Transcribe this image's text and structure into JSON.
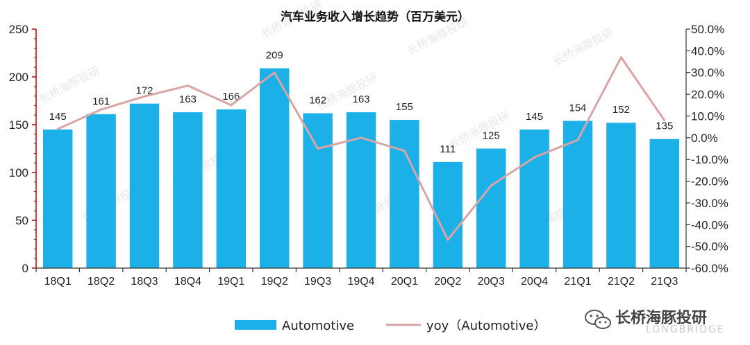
{
  "chart_data": {
    "type": "bar",
    "title": "汽车业务收入增长趋势（百万美元）",
    "categories": [
      "18Q1",
      "18Q2",
      "18Q3",
      "18Q4",
      "19Q1",
      "19Q2",
      "19Q3",
      "19Q4",
      "20Q1",
      "20Q2",
      "20Q3",
      "20Q4",
      "21Q1",
      "21Q2",
      "21Q3"
    ],
    "series": [
      {
        "name": "Automotive",
        "type": "bar",
        "axis": "left",
        "color": "#1cb0e8",
        "values": [
          145,
          161,
          172,
          163,
          166,
          209,
          162,
          163,
          155,
          111,
          125,
          145,
          154,
          152,
          135
        ]
      },
      {
        "name": "yoy（Automotive）",
        "type": "line",
        "axis": "right",
        "color": "#d9a4a4",
        "values": [
          0.04,
          0.13,
          0.19,
          0.24,
          0.15,
          0.3,
          -0.05,
          0.0,
          -0.06,
          -0.47,
          -0.22,
          -0.09,
          -0.01,
          0.37,
          0.08
        ]
      }
    ],
    "y_left": {
      "ylim": [
        0,
        250
      ],
      "ticks": [
        "0",
        "50",
        "100",
        "150",
        "200",
        "250"
      ]
    },
    "y_right": {
      "ylim": [
        -0.6,
        0.5
      ],
      "ticks": [
        "-60.0%",
        "-50.0%",
        "-40.0%",
        "-30.0%",
        "-20.0%",
        "-10.0%",
        "0.0%",
        "10.0%",
        "20.0%",
        "30.0%",
        "40.0%",
        "50.0%"
      ]
    },
    "legend": "bottom-center",
    "grid": false
  },
  "watermark": {
    "text": "长桥海豚投研",
    "brand": "长桥海豚投研",
    "brand_sub": "LONGBRIDGE"
  }
}
